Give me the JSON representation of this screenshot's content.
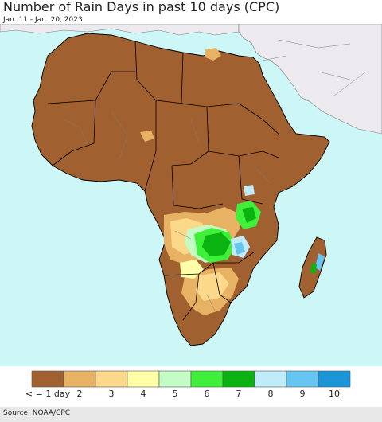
{
  "title": "Number of Rain Days in past 10 days (CPC)",
  "date_range": "Jan. 11 - Jan. 20, 2023",
  "source": "Source: NOAA/CPC",
  "colors": {
    "ocean": "#cdf7f7",
    "land_outside": "#ece9ef",
    "border": "#000000",
    "inner_border": "#7d7d7d"
  },
  "legend": {
    "bins": [
      {
        "label": "< = 1 day",
        "color": "#a0602f"
      },
      {
        "label": "2",
        "color": "#e8b264"
      },
      {
        "label": "3",
        "color": "#fcd88a"
      },
      {
        "label": "4",
        "color": "#ffffa8"
      },
      {
        "label": "5",
        "color": "#c3fcc5"
      },
      {
        "label": "6",
        "color": "#3ef03a"
      },
      {
        "label": "7",
        "color": "#0ab30f"
      },
      {
        "label": "8",
        "color": "#c0ecfa"
      },
      {
        "label": "9",
        "color": "#66c6f2"
      },
      {
        "label": "10",
        "color": "#1a95d8"
      }
    ]
  }
}
